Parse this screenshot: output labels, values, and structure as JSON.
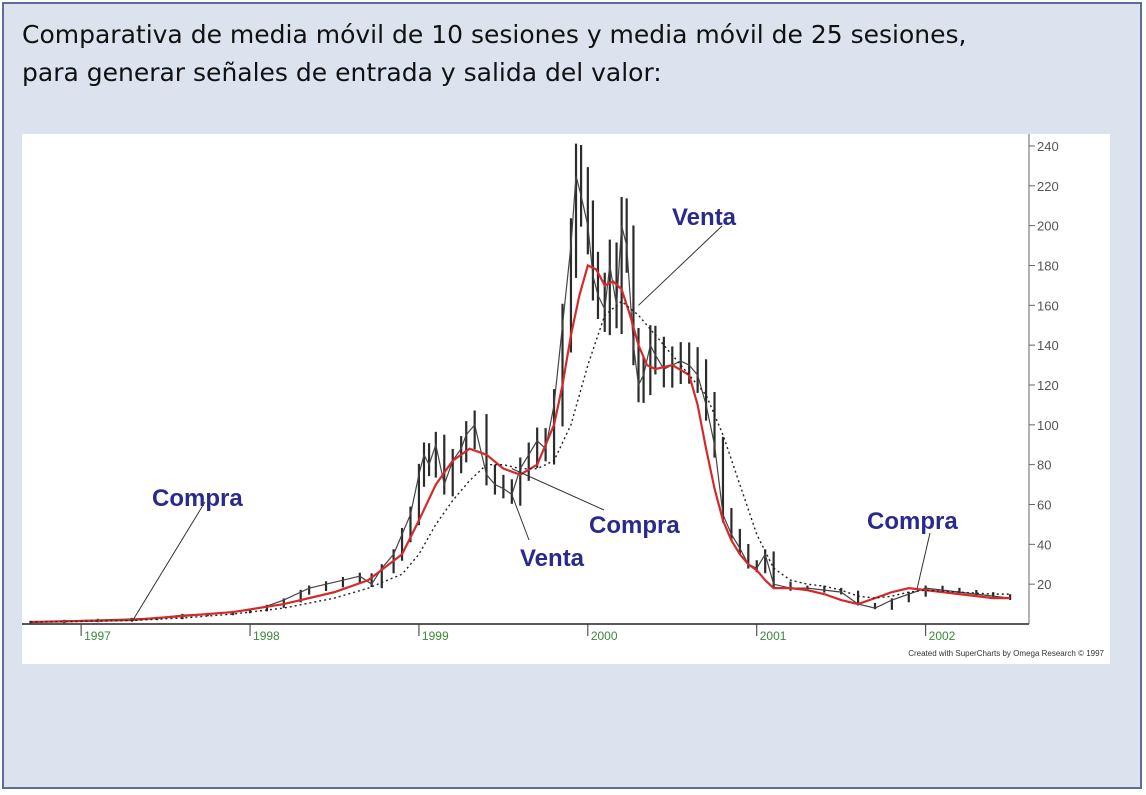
{
  "heading": {
    "line1": "Comparativa de media móvil de 10 sesiones y media móvil de 25 sesiones,",
    "line2": "para generar señales de entrada y salida del valor:"
  },
  "chart_data": {
    "type": "line",
    "credit": "Created with SuperCharts by Omega Research © 1997",
    "x_ticks": [
      "1997",
      "1998",
      "1999",
      "2000",
      "2001",
      "2002"
    ],
    "x_tick_years": [
      1997.0,
      1998.0,
      1999.0,
      2000.0,
      2001.0,
      2002.0
    ],
    "xlim": [
      1996.65,
      2002.6
    ],
    "y_ticks": [
      20,
      40,
      60,
      80,
      100,
      120,
      140,
      160,
      180,
      200,
      220,
      240
    ],
    "ylim": [
      0,
      244
    ],
    "grid": false,
    "price": {
      "x": [
        1996.7,
        1996.9,
        1997.1,
        1997.3,
        1997.45,
        1997.6,
        1997.75,
        1997.9,
        1998.0,
        1998.1,
        1998.2,
        1998.3,
        1998.35,
        1998.45,
        1998.55,
        1998.65,
        1998.72,
        1998.78,
        1998.85,
        1998.9,
        1998.95,
        1999.0,
        1999.03,
        1999.06,
        1999.1,
        1999.15,
        1999.2,
        1999.25,
        1999.28,
        1999.33,
        1999.4,
        1999.45,
        1999.5,
        1999.55,
        1999.6,
        1999.65,
        1999.7,
        1999.75,
        1999.8,
        1999.85,
        1999.9,
        1999.93,
        1999.96,
        2000.0,
        2000.03,
        2000.06,
        2000.1,
        2000.13,
        2000.17,
        2000.2,
        2000.23,
        2000.27,
        2000.3,
        2000.33,
        2000.37,
        2000.4,
        2000.45,
        2000.5,
        2000.55,
        2000.6,
        2000.65,
        2000.7,
        2000.75,
        2000.8,
        2000.85,
        2000.9,
        2000.95,
        2001.0,
        2001.05,
        2001.1,
        2001.2,
        2001.3,
        2001.4,
        2001.5,
        2001.6,
        2001.7,
        2001.8,
        2001.9,
        2002.0,
        2002.1,
        2002.2,
        2002.3,
        2002.4,
        2002.5
      ],
      "y": [
        1,
        1.5,
        2,
        2.5,
        3,
        4.5,
        5,
        6,
        7,
        9,
        12,
        16,
        18,
        20,
        22,
        24,
        20,
        28,
        35,
        45,
        55,
        75,
        85,
        80,
        90,
        70,
        82,
        88,
        95,
        100,
        75,
        70,
        68,
        65,
        78,
        85,
        92,
        88,
        110,
        150,
        190,
        225,
        215,
        200,
        175,
        165,
        158,
        180,
        160,
        200,
        190,
        140,
        120,
        125,
        140,
        135,
        128,
        130,
        132,
        130,
        125,
        110,
        90,
        55,
        45,
        38,
        30,
        28,
        35,
        20,
        18,
        18,
        17,
        16,
        10,
        8,
        12,
        15,
        18,
        17,
        16,
        15,
        14,
        13
      ]
    },
    "series": [
      {
        "name": "",
        "x": [
          1996.7,
          1997.0,
          1997.3,
          1997.6,
          1997.9,
          1998.2,
          1998.5,
          1998.7,
          1998.9,
          1999.0,
          1999.1,
          1999.2,
          1999.3,
          1999.4,
          1999.5,
          1999.6,
          1999.7,
          1999.8,
          1999.85,
          1999.9,
          1999.95,
          2000.0,
          2000.05,
          2000.1,
          2000.15,
          2000.2,
          2000.25,
          2000.3,
          2000.35,
          2000.4,
          2000.5,
          2000.6,
          2000.65,
          2000.7,
          2000.75,
          2000.8,
          2000.85,
          2000.9,
          2000.95,
          2001.0,
          2001.05,
          2001.1,
          2001.2,
          2001.3,
          2001.4,
          2001.5,
          2001.6,
          2001.7,
          2001.8,
          2001.9,
          2002.0,
          2002.1,
          2002.2,
          2002.3,
          2002.4,
          2002.5
        ],
        "y": [
          1,
          1.5,
          2,
          4,
          6,
          10,
          16,
          22,
          35,
          52,
          70,
          82,
          88,
          85,
          78,
          75,
          80,
          100,
          120,
          145,
          165,
          180,
          178,
          170,
          172,
          168,
          155,
          140,
          130,
          128,
          130,
          125,
          110,
          88,
          68,
          52,
          42,
          35,
          30,
          27,
          22,
          18,
          18,
          17,
          15,
          12,
          10,
          13,
          16,
          18,
          17,
          16,
          15,
          14,
          13,
          13
        ],
        "color": "#d42a2a",
        "style": "solid"
      },
      {
        "name": "",
        "x": [
          1996.7,
          1997.0,
          1997.3,
          1997.6,
          1997.9,
          1998.2,
          1998.5,
          1998.7,
          1998.9,
          1999.0,
          1999.1,
          1999.2,
          1999.3,
          1999.4,
          1999.5,
          1999.6,
          1999.7,
          1999.8,
          1999.9,
          2000.0,
          2000.1,
          2000.2,
          2000.3,
          2000.4,
          2000.5,
          2000.6,
          2000.7,
          2000.8,
          2000.9,
          2001.0,
          2001.1,
          2001.2,
          2001.3,
          2001.4,
          2001.5,
          2001.6,
          2001.7,
          2001.8,
          2001.9,
          2002.0,
          2002.2,
          2002.4,
          2002.5
        ],
        "y": [
          1,
          1.3,
          1.8,
          3,
          5,
          8,
          13,
          18,
          25,
          35,
          50,
          62,
          72,
          80,
          80,
          78,
          78,
          82,
          100,
          130,
          155,
          162,
          155,
          145,
          135,
          125,
          115,
          95,
          70,
          45,
          28,
          22,
          20,
          19,
          17,
          14,
          13,
          14,
          16,
          17,
          16,
          15,
          15
        ],
        "color": "#222222",
        "style": "dotted"
      }
    ],
    "annotations": [
      {
        "text": "Compra",
        "x": 1997.3,
        "y": 1
      },
      {
        "text": "Venta",
        "x": 2000.3,
        "y": 160
      },
      {
        "text": "Venta",
        "x": 1999.55,
        "y": 65
      },
      {
        "text": "Compra",
        "x": 1999.55,
        "y": 78
      },
      {
        "text": "Compra",
        "x": 2001.95,
        "y": 18
      }
    ]
  }
}
